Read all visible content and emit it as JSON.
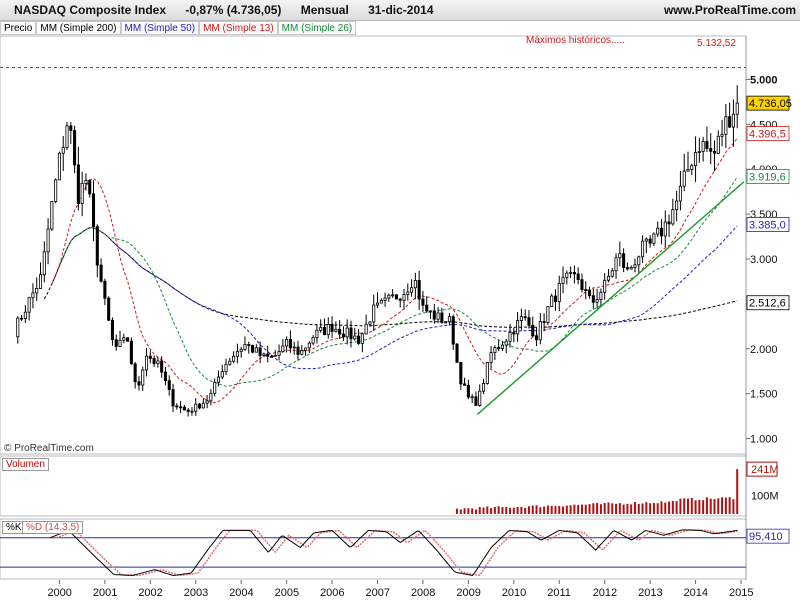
{
  "header": {
    "title": "NASDAQ Composite Index",
    "change": "-0,87% (4.736,05)",
    "period": "Mensual",
    "date": "31-dic-2014",
    "source": "www.ProRealTime.com"
  },
  "legend": [
    {
      "label": "Precio",
      "color": "#000000"
    },
    {
      "label": "MM (Simple 200)",
      "color": "#000000"
    },
    {
      "label": "MM (Simple 50)",
      "color": "#1f1fbf"
    },
    {
      "label": "MM (Simple 13)",
      "color": "#d21a1a"
    },
    {
      "label": "MM (Simple 26)",
      "color": "#1a8a3a"
    }
  ],
  "annotations": {
    "ath_label": "Máximos históricos.....",
    "ath_value_label": "5.132,52",
    "copyright": "© ProRealTime.com",
    "volume_panel": "Volumen",
    "stoch_k": "%K",
    "stoch_d": "%D (14,3,5)"
  },
  "chart_data": {
    "type": "candlestick",
    "x_years": [
      "2000",
      "2001",
      "2002",
      "2003",
      "2004",
      "2005",
      "2006",
      "2007",
      "2008",
      "2009",
      "2010",
      "2011",
      "2012",
      "2013",
      "2014",
      "2015"
    ],
    "y_ticks": [
      "5.000",
      "4.500",
      "4.000",
      "3.500",
      "3.000",
      "2.500",
      "2.000",
      "1.500",
      "1.000"
    ],
    "y_tick_values": [
      5000,
      4500,
      4000,
      3500,
      3000,
      2500,
      2000,
      1500,
      1000
    ],
    "ylim": [
      850,
      5350
    ],
    "price_labels": [
      {
        "text": "4.736,05",
        "value": 4736.05,
        "color": "#000000",
        "bg": "#ffd400"
      },
      {
        "text": "4.396,5",
        "value": 4396.5,
        "color": "#d21a1a",
        "bg": "#ffffff"
      },
      {
        "text": "3.919,6",
        "value": 3919.6,
        "color": "#1a8a3a",
        "bg": "#ffffff"
      },
      {
        "text": "3.385,0",
        "value": 3385.0,
        "color": "#1f1fbf",
        "bg": "#ffffff"
      },
      {
        "text": "2.512,6",
        "value": 2512.6,
        "color": "#000000",
        "bg": "#ffffff"
      }
    ],
    "all_time_high": 5132.52,
    "trendline": {
      "x1": 2009.2,
      "y1": 1270,
      "x2": 2015.7,
      "y2": 3860
    },
    "price_anchors": [
      [
        1999.0,
        2200
      ],
      [
        1999.3,
        2500
      ],
      [
        1999.6,
        2800
      ],
      [
        1999.8,
        3500
      ],
      [
        2000.0,
        4100
      ],
      [
        2000.2,
        4600
      ],
      [
        2000.4,
        3700
      ],
      [
        2000.6,
        3900
      ],
      [
        2000.8,
        3100
      ],
      [
        2001.0,
        2500
      ],
      [
        2001.2,
        2000
      ],
      [
        2001.5,
        2100
      ],
      [
        2001.7,
        1500
      ],
      [
        2001.9,
        1950
      ],
      [
        2002.2,
        1800
      ],
      [
        2002.5,
        1400
      ],
      [
        2002.8,
        1300
      ],
      [
        2003.0,
        1350
      ],
      [
        2003.3,
        1450
      ],
      [
        2003.6,
        1800
      ],
      [
        2003.9,
        1970
      ],
      [
        2004.1,
        2050
      ],
      [
        2004.5,
        1900
      ],
      [
        2004.7,
        1900
      ],
      [
        2005.0,
        2050
      ],
      [
        2005.3,
        1950
      ],
      [
        2005.6,
        2150
      ],
      [
        2006.0,
        2250
      ],
      [
        2006.4,
        2150
      ],
      [
        2006.6,
        2100
      ],
      [
        2006.9,
        2420
      ],
      [
        2007.3,
        2550
      ],
      [
        2007.6,
        2650
      ],
      [
        2007.8,
        2800
      ],
      [
        2008.0,
        2450
      ],
      [
        2008.3,
        2350
      ],
      [
        2008.6,
        2300
      ],
      [
        2008.8,
        1700
      ],
      [
        2009.0,
        1450
      ],
      [
        2009.2,
        1400
      ],
      [
        2009.5,
        1950
      ],
      [
        2009.8,
        2100
      ],
      [
        2010.2,
        2350
      ],
      [
        2010.5,
        2150
      ],
      [
        2010.8,
        2500
      ],
      [
        2011.1,
        2750
      ],
      [
        2011.4,
        2800
      ],
      [
        2011.7,
        2500
      ],
      [
        2012.0,
        2700
      ],
      [
        2012.3,
        3050
      ],
      [
        2012.5,
        2850
      ],
      [
        2012.8,
        3100
      ],
      [
        2013.0,
        3150
      ],
      [
        2013.3,
        3350
      ],
      [
        2013.6,
        3650
      ],
      [
        2013.9,
        4100
      ],
      [
        2014.1,
        4300
      ],
      [
        2014.4,
        4150
      ],
      [
        2014.6,
        4450
      ],
      [
        2014.8,
        4650
      ],
      [
        2014.95,
        4736
      ]
    ],
    "volume": {
      "label": "Volumen",
      "ticks": [
        "241M",
        "100M"
      ],
      "tick_values": [
        241,
        100
      ],
      "max": 290
    },
    "stochastic": {
      "label_k": "%K",
      "label_d": "%D (14,3,5)",
      "last_label": "95,410",
      "last_value": 95.41,
      "levels": [
        80,
        20
      ],
      "ylim": [
        0,
        110
      ]
    }
  }
}
